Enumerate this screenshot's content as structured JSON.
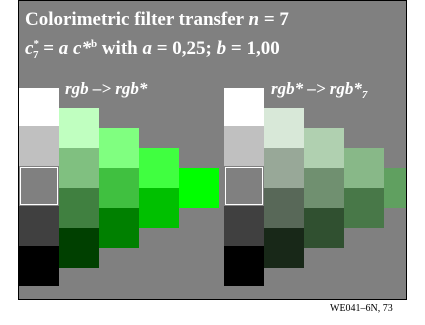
{
  "title_prefix": "Colorimetric filter transfer ",
  "title_var": "n",
  "title_value": " = 7",
  "formula": {
    "c": "c",
    "star": "*",
    "seven": "7",
    "mid": " = ",
    "a": "a",
    "c2": " c*",
    "b_sup": "b",
    "with": " with ",
    "a2": "a",
    "a_val": " = 0,25; ",
    "b2": "b",
    "b_val": " = 1,00"
  },
  "label_left": "rgb –> rgb*",
  "label_right_main": "rgb* –> rgb*",
  "label_right_sub": "7",
  "footer": "WE041–6N, 73",
  "colors": {
    "background": "#808080",
    "gray_column": [
      "#ffffff",
      "#c0c0c0",
      "#808080",
      "#404040",
      "#000000"
    ],
    "green_col1": [
      "#c0ffc0",
      "#80c080",
      "#408040",
      "#004000"
    ],
    "green_col2": [
      "#80ff80",
      "#40c040",
      "#008000"
    ],
    "green_col3": [
      "#40ff40",
      "#00c000"
    ],
    "green_col4": [
      "#00ff00"
    ],
    "filtered_col1": [
      "#d8e8d8",
      "#98a898",
      "#586858",
      "#182818"
    ],
    "filtered_col2": [
      "#b0d0b0",
      "#709070",
      "#305030"
    ],
    "filtered_col3": [
      "#88b888",
      "#487848"
    ],
    "filtered_col4": [
      "#60a060"
    ]
  }
}
